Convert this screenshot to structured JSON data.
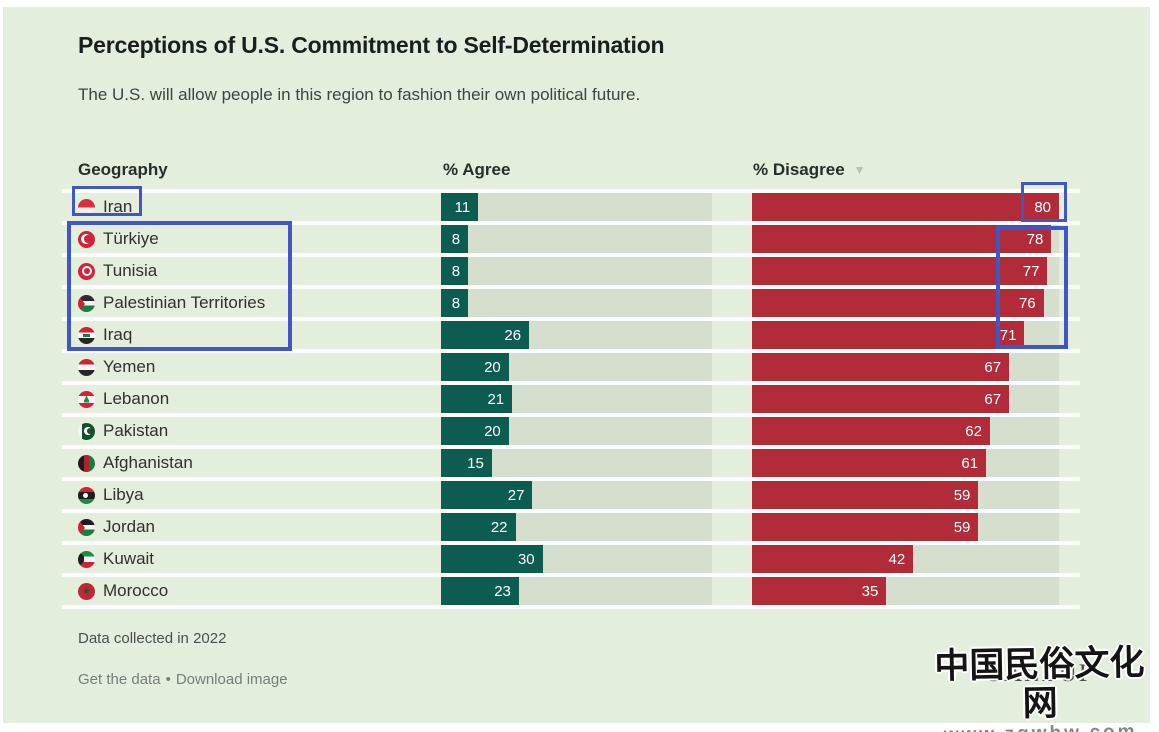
{
  "header": {
    "title": "Perceptions of U.S. Commitment to Self-Determination",
    "subtitle": "The U.S. will allow people in this region to fashion their own political future."
  },
  "table": {
    "columns": {
      "geography": "Geography",
      "agree": "% Agree",
      "disagree": "% Disagree"
    },
    "sort_icon": "▼",
    "sorted_by": "% Disagree",
    "sort_direction": "descending",
    "rows": [
      {
        "country": "Iran",
        "flag": "iran",
        "agree": 11,
        "disagree": 80
      },
      {
        "country": "Türkiye",
        "flag": "turkiye",
        "agree": 8,
        "disagree": 78
      },
      {
        "country": "Tunisia",
        "flag": "tunisia",
        "agree": 8,
        "disagree": 77
      },
      {
        "country": "Palestinian Territories",
        "flag": "palestine",
        "agree": 8,
        "disagree": 76
      },
      {
        "country": "Iraq",
        "flag": "iraq",
        "agree": 26,
        "disagree": 71
      },
      {
        "country": "Yemen",
        "flag": "yemen",
        "agree": 20,
        "disagree": 67
      },
      {
        "country": "Lebanon",
        "flag": "lebanon",
        "agree": 21,
        "disagree": 67
      },
      {
        "country": "Pakistan",
        "flag": "pakistan",
        "agree": 20,
        "disagree": 62
      },
      {
        "country": "Afghanistan",
        "flag": "afghanistan",
        "agree": 15,
        "disagree": 61
      },
      {
        "country": "Libya",
        "flag": "libya",
        "agree": 27,
        "disagree": 59
      },
      {
        "country": "Jordan",
        "flag": "jordan",
        "agree": 22,
        "disagree": 59
      },
      {
        "country": "Kuwait",
        "flag": "kuwait",
        "agree": 30,
        "disagree": 42
      },
      {
        "country": "Morocco",
        "flag": "morocco",
        "agree": 23,
        "disagree": 35
      }
    ]
  },
  "footer": {
    "note": "Data collected in 2022",
    "get_the_data": "Get the data",
    "bullet": "•",
    "download_image": "Download image"
  },
  "branding": {
    "logo": "GALLUP"
  },
  "watermark": {
    "line1": "中国民俗文化网",
    "line2": "www.zgwhw.com"
  },
  "colors": {
    "canvas_background": "#e3eedd",
    "bar_track": "#d6decd",
    "agree_bar": "#0d5c50",
    "disagree_bar": "#b12b39",
    "row_separator": "#fdfefc",
    "highlight_box": "#4156c5",
    "sort_caret": "#b7c2b1"
  },
  "chart_data": {
    "type": "bar",
    "orientation": "horizontal",
    "title": "Perceptions of U.S. Commitment to Self-Determination",
    "subtitle": "The U.S. will allow people in this region to fashion their own political future.",
    "categories": [
      "Iran",
      "Türkiye",
      "Tunisia",
      "Palestinian Territories",
      "Iraq",
      "Yemen",
      "Lebanon",
      "Pakistan",
      "Afghanistan",
      "Libya",
      "Jordan",
      "Kuwait",
      "Morocco"
    ],
    "series": [
      {
        "name": "% Agree",
        "color": "#0d5c50",
        "values": [
          11,
          8,
          8,
          8,
          26,
          20,
          21,
          20,
          15,
          27,
          22,
          30,
          23
        ]
      },
      {
        "name": "% Disagree",
        "color": "#b12b39",
        "values": [
          80,
          78,
          77,
          76,
          71,
          67,
          67,
          62,
          61,
          59,
          59,
          42,
          35
        ]
      }
    ],
    "xlim": [
      0,
      80
    ],
    "data_labels": true,
    "legend_position": "column-headers",
    "sort": "% Disagree descending",
    "note": "Data collected in 2022"
  }
}
